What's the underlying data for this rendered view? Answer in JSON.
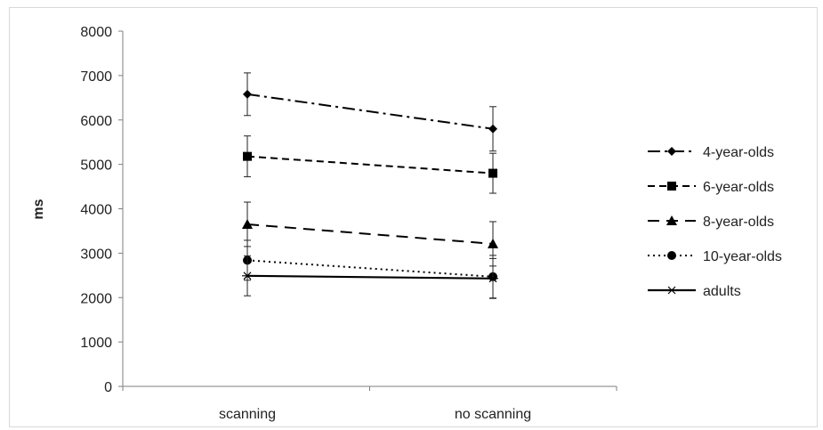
{
  "chart_data": {
    "type": "line",
    "title": "",
    "xlabel": "",
    "ylabel": "ms",
    "categories": [
      "scanning",
      "no scanning"
    ],
    "ylim": [
      0,
      8000
    ],
    "yticks": [
      0,
      1000,
      2000,
      3000,
      4000,
      5000,
      6000,
      7000,
      8000
    ],
    "grid": false,
    "legend_position": "right",
    "series": [
      {
        "name": "4-year-olds",
        "marker": "diamond",
        "dash": "dash-dot",
        "values": [
          6580,
          5800
        ],
        "errors": [
          480,
          500
        ]
      },
      {
        "name": "6-year-olds",
        "marker": "square",
        "dash": "short-dash",
        "values": [
          5180,
          4800
        ],
        "errors": [
          460,
          450
        ]
      },
      {
        "name": "8-year-olds",
        "marker": "triangle",
        "dash": "long-dash",
        "values": [
          3650,
          3210
        ],
        "errors": [
          500,
          500
        ]
      },
      {
        "name": "10-year-olds",
        "marker": "circle",
        "dash": "dotted",
        "values": [
          2840,
          2470
        ],
        "errors": [
          450,
          480
        ]
      },
      {
        "name": "adults",
        "marker": "star",
        "dash": "solid",
        "values": [
          2490,
          2430
        ],
        "errors": [
          450,
          450
        ]
      }
    ]
  }
}
